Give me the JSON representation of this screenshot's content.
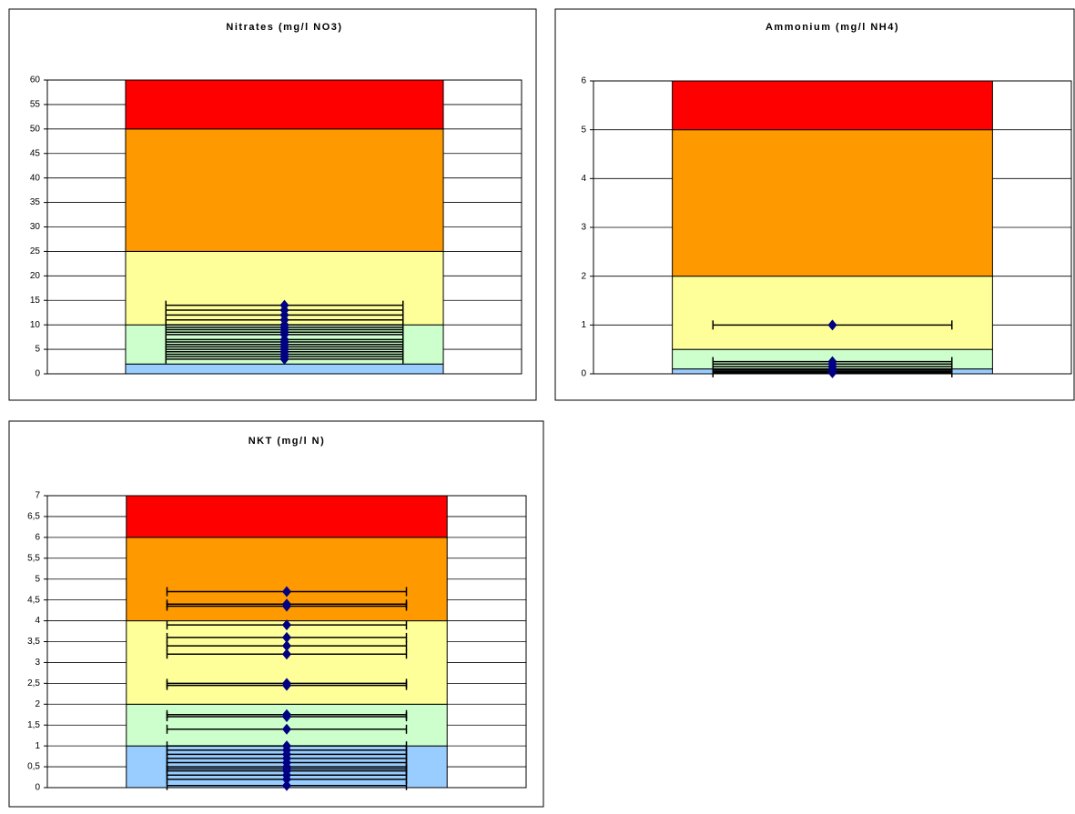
{
  "chart_data": [
    {
      "type": "bar",
      "title": "Nitrates (mg/l NO3)",
      "series": [
        {
          "color": "#99ccff",
          "values": [
            2
          ]
        },
        {
          "color": "#ccffcc",
          "values": [
            8
          ]
        },
        {
          "color": "#ffff99",
          "values": [
            15
          ]
        },
        {
          "color": "#ff9900",
          "values": [
            25
          ]
        },
        {
          "color": "#ff0000",
          "values": [
            10
          ]
        }
      ],
      "points": {
        "color": "#000080",
        "values": [
          14,
          13,
          12,
          11,
          10,
          9.5,
          9,
          8.5,
          8,
          7,
          6.5,
          6,
          5.5,
          5,
          4.5,
          4,
          3.5,
          3
        ]
      },
      "ylim": [
        0,
        60
      ],
      "yticks": [
        0,
        5,
        10,
        15,
        20,
        25,
        30,
        35,
        40,
        45,
        50,
        55,
        60
      ],
      "grid": true
    },
    {
      "type": "bar",
      "title": "Ammonium (mg/l NH4)",
      "series": [
        {
          "color": "#99ccff",
          "values": [
            0.1
          ]
        },
        {
          "color": "#ccffcc",
          "values": [
            0.4
          ]
        },
        {
          "color": "#ffff99",
          "values": [
            1.5
          ]
        },
        {
          "color": "#ff9900",
          "values": [
            3
          ]
        },
        {
          "color": "#ff0000",
          "values": [
            1
          ]
        }
      ],
      "points": {
        "color": "#000080",
        "values": [
          1,
          0.25,
          0.2,
          0.15,
          0.1,
          0.08,
          0.05,
          0.03,
          0.02
        ]
      },
      "ylim": [
        0,
        6
      ],
      "yticks": [
        0,
        1,
        2,
        3,
        4,
        5,
        6
      ],
      "grid": true
    },
    {
      "type": "bar",
      "title": "NKT (mg/l N)",
      "series": [
        {
          "color": "#99ccff",
          "values": [
            1
          ]
        },
        {
          "color": "#ccffcc",
          "values": [
            1
          ]
        },
        {
          "color": "#ffff99",
          "values": [
            2
          ]
        },
        {
          "color": "#ff9900",
          "values": [
            2
          ]
        },
        {
          "color": "#ff0000",
          "values": [
            1
          ]
        }
      ],
      "points": {
        "color": "#000080",
        "values": [
          4.7,
          4.4,
          4.35,
          3.9,
          3.6,
          3.4,
          3.2,
          2.5,
          2.45,
          1.75,
          1.7,
          1.4,
          1,
          0.9,
          0.8,
          0.7,
          0.6,
          0.5,
          0.45,
          0.4,
          0.3,
          0.2,
          0.05
        ]
      },
      "ylim": [
        0,
        7
      ],
      "yticks": [
        0,
        {
          "value": 0.5,
          "label": "0,5"
        },
        1,
        {
          "value": 1.5,
          "label": "1,5"
        },
        2,
        {
          "value": 2.5,
          "label": "2,5"
        },
        3,
        {
          "value": 3.5,
          "label": "3,5"
        },
        4,
        {
          "value": 4.5,
          "label": "4,5"
        },
        5,
        {
          "value": 5.5,
          "label": "5,5"
        },
        6,
        {
          "value": 6.5,
          "label": "6,5"
        },
        7
      ],
      "grid": true
    }
  ]
}
